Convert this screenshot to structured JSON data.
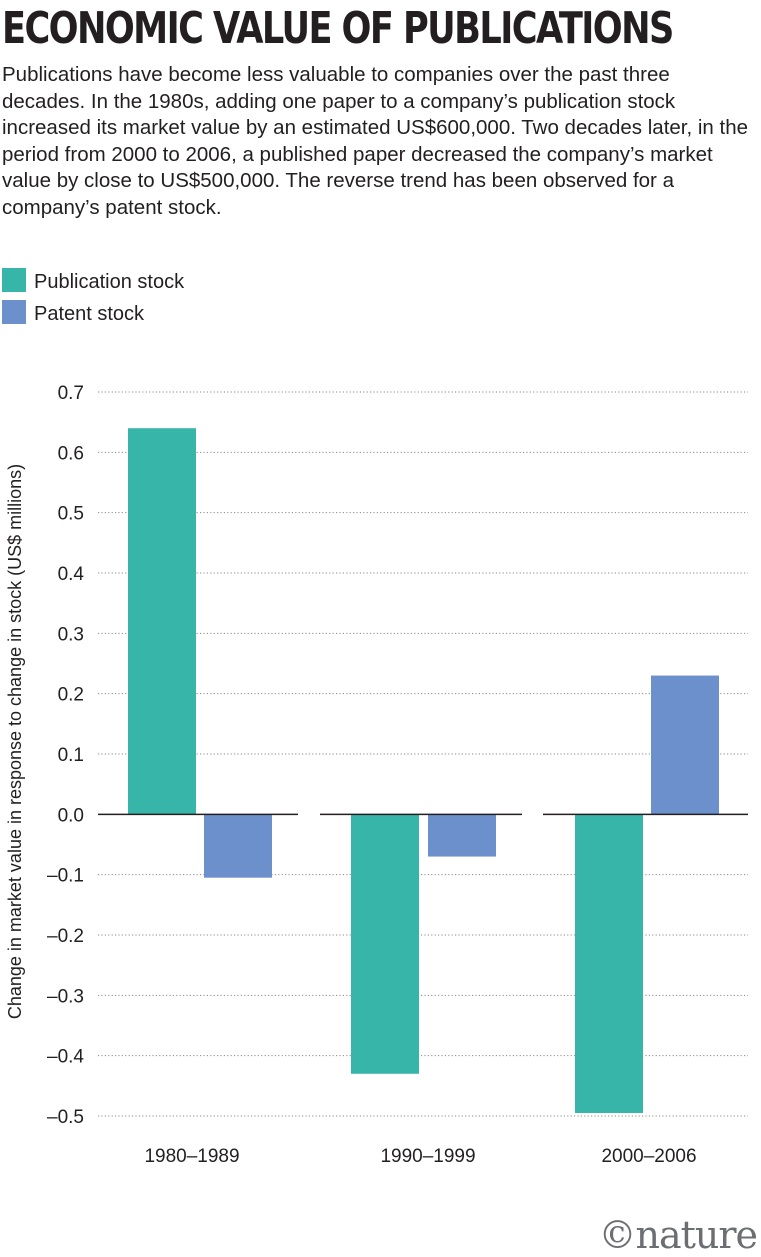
{
  "header": {
    "title": "ECONOMIC VALUE OF PUBLICATIONS",
    "subtitle": "Publications have become less valuable to companies over the past three decades. In the 1980s, adding one paper to a company’s publication stock increased its market value by an estimated US$600,000. Two decades later, in the period from 2000 to 2006, a published paper decreased the company’s market value by close to US$500,000. The reverse trend has been observed for a company’s patent stock."
  },
  "legend": {
    "items": [
      {
        "label": "Publication stock",
        "color": "#38b5a9"
      },
      {
        "label": "Patent stock",
        "color": "#6b90cb"
      }
    ]
  },
  "chart_data": {
    "type": "bar",
    "title": "ECONOMIC VALUE OF PUBLICATIONS",
    "ylabel": "Change in market value in response to change in stock (US$ millions)",
    "xlabel": "",
    "categories": [
      "1980–1989",
      "1990–1999",
      "2000–2006"
    ],
    "series": [
      {
        "name": "Publication stock",
        "color": "#38b5a9",
        "values": [
          0.64,
          -0.43,
          -0.495
        ]
      },
      {
        "name": "Patent stock",
        "color": "#6b90cb",
        "values": [
          -0.105,
          -0.07,
          0.23
        ]
      }
    ],
    "yticks": [
      "0.7",
      "0.6",
      "0.5",
      "0.4",
      "0.3",
      "0.2",
      "0.1",
      "0.0",
      "-0.1",
      "-0.2",
      "-0.3",
      "-0.4",
      "-0.5"
    ],
    "ylim": [
      -0.5,
      0.7
    ],
    "grid": true,
    "legend_position": "top-left"
  },
  "footer": {
    "logo_text": "©nature"
  }
}
